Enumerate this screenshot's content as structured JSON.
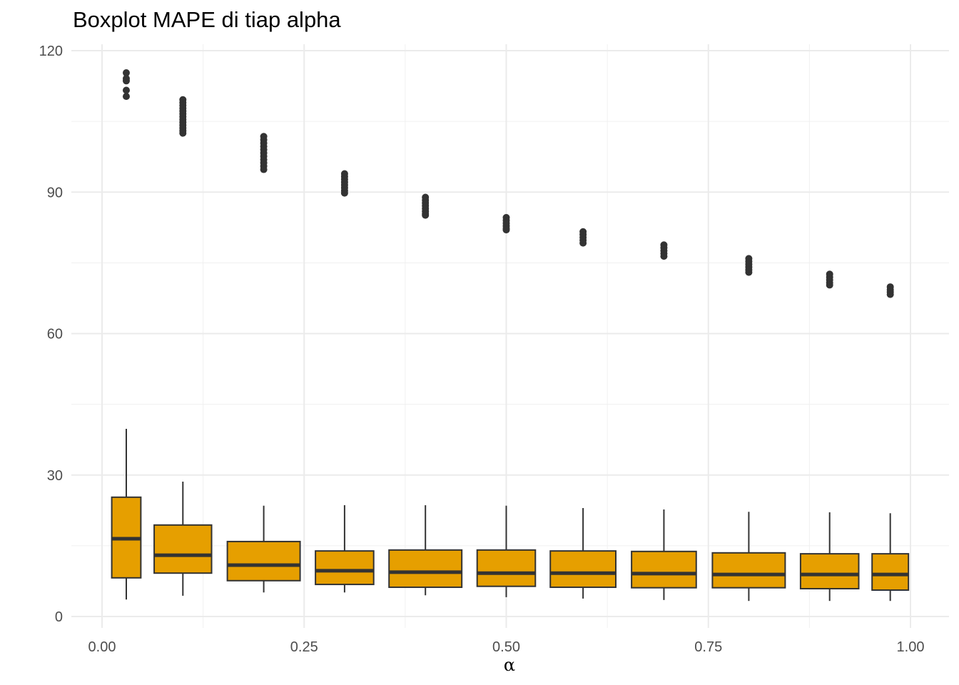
{
  "chart_data": {
    "type": "boxplot",
    "title": "Boxplot MAPE di tiap alpha",
    "xlabel": "α",
    "ylabel": "",
    "xlim": [
      -0.07,
      1.045
    ],
    "ylim": [
      -3,
      121.5
    ],
    "x_ticks": [
      0.0,
      0.25,
      0.5,
      0.75,
      1.0
    ],
    "x_tick_labels": [
      "0.00",
      "0.25",
      "0.50",
      "0.75",
      "1.00"
    ],
    "y_ticks": [
      0,
      30,
      60,
      90,
      120
    ],
    "y_tick_labels": [
      "0",
      "30",
      "60",
      "90",
      "120"
    ],
    "grid": true,
    "fill_color": "#E69F00",
    "line_color": "#333333",
    "boxes": [
      {
        "x": 0.03,
        "width": 0.036,
        "lower_whisker": 3.6,
        "q1": 8.2,
        "median": 16.5,
        "q3": 25.3,
        "upper_whisker": 39.8,
        "outliers": [
          115.3,
          114.1,
          113.6,
          111.6,
          110.3
        ]
      },
      {
        "x": 0.1,
        "width": 0.071,
        "lower_whisker": 4.4,
        "q1": 9.2,
        "median": 13.0,
        "q3": 19.4,
        "upper_whisker": 28.6,
        "outliers": [
          109.6,
          109.0,
          108.4,
          107.8,
          107.2,
          106.6,
          106.0,
          105.4,
          104.8,
          104.2,
          103.6,
          103.0,
          102.5
        ]
      },
      {
        "x": 0.2,
        "width": 0.09,
        "lower_whisker": 5.1,
        "q1": 7.6,
        "median": 10.9,
        "q3": 15.9,
        "upper_whisker": 23.5,
        "outliers": [
          101.8,
          101.1,
          100.4,
          99.7,
          99.0,
          98.3,
          97.6,
          96.9,
          96.2,
          95.5,
          94.8
        ]
      },
      {
        "x": 0.3,
        "width": 0.072,
        "lower_whisker": 5.1,
        "q1": 6.8,
        "median": 9.7,
        "q3": 13.9,
        "upper_whisker": 23.6,
        "outliers": [
          93.9,
          93.3,
          92.7,
          92.1,
          91.5,
          90.9,
          90.3,
          89.8
        ]
      },
      {
        "x": 0.4,
        "width": 0.09,
        "lower_whisker": 4.5,
        "q1": 6.2,
        "median": 9.4,
        "q3": 14.1,
        "upper_whisker": 23.6,
        "outliers": [
          88.9,
          88.3,
          87.7,
          87.1,
          86.5,
          85.9,
          85.4,
          85.1
        ]
      },
      {
        "x": 0.5,
        "width": 0.072,
        "lower_whisker": 4.1,
        "q1": 6.4,
        "median": 9.2,
        "q3": 14.1,
        "upper_whisker": 23.5,
        "outliers": [
          84.6,
          84.0,
          83.4,
          82.8,
          82.3,
          82.0
        ]
      },
      {
        "x": 0.595,
        "width": 0.081,
        "lower_whisker": 3.8,
        "q1": 6.2,
        "median": 9.2,
        "q3": 13.9,
        "upper_whisker": 23.0,
        "outliers": [
          81.6,
          81.0,
          80.4,
          79.8,
          79.2
        ]
      },
      {
        "x": 0.695,
        "width": 0.08,
        "lower_whisker": 3.5,
        "q1": 6.1,
        "median": 9.1,
        "q3": 13.8,
        "upper_whisker": 22.7,
        "outliers": [
          78.8,
          78.2,
          77.6,
          77.0,
          76.4
        ]
      },
      {
        "x": 0.8,
        "width": 0.09,
        "lower_whisker": 3.3,
        "q1": 6.1,
        "median": 8.9,
        "q3": 13.5,
        "upper_whisker": 22.2,
        "outliers": [
          75.9,
          75.3,
          74.7,
          74.1,
          73.5,
          73.0
        ]
      },
      {
        "x": 0.9,
        "width": 0.072,
        "lower_whisker": 3.3,
        "q1": 5.9,
        "median": 8.9,
        "q3": 13.3,
        "upper_whisker": 22.1,
        "outliers": [
          72.6,
          72.0,
          71.4,
          70.8,
          70.3
        ]
      },
      {
        "x": 0.975,
        "width": 0.045,
        "lower_whisker": 3.3,
        "q1": 5.6,
        "median": 8.9,
        "q3": 13.3,
        "upper_whisker": 21.9,
        "outliers": [
          69.9,
          69.3,
          68.8,
          68.3
        ]
      }
    ]
  }
}
